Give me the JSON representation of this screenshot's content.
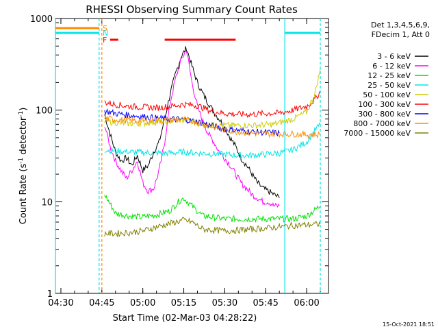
{
  "chart_data": {
    "type": "line",
    "title": "RHESSI Observing Summary Count Rates",
    "xlabel": "Start Time (02-Mar-03 04:28:22)",
    "ylabel": "Count Rate (s⁻¹ detector⁻¹)",
    "yscale": "log",
    "xlim": [
      "04:28",
      "06:08"
    ],
    "ylim": [
      1,
      1000
    ],
    "x_ticks": [
      "04:30",
      "04:45",
      "05:00",
      "05:15",
      "05:30",
      "05:45",
      "06:00"
    ],
    "y_ticks": [
      "1",
      "10",
      "100",
      "1000"
    ],
    "legend_placement": "right",
    "legend_header": [
      "Det 1,3,4,5,6,9,",
      "FDecim 1, Att 0"
    ],
    "footer_timestamp": "15-Oct-2021 18:51",
    "flags": [
      {
        "label": "S",
        "color": "#ff8c00",
        "segments": [
          [
            "04:28",
            "04:44"
          ]
        ]
      },
      {
        "label": "N",
        "color": "#00e5e5",
        "segments": [
          [
            "04:28",
            "04:44"
          ],
          [
            "05:52",
            "06:05"
          ]
        ]
      },
      {
        "label": "F",
        "color": "#ff0000",
        "segments": [
          [
            "04:48",
            "04:51"
          ],
          [
            "05:08",
            "05:34"
          ]
        ]
      }
    ],
    "night_boundaries": [
      {
        "time": "04:28",
        "color": "#00e5e5",
        "style": "solid"
      },
      {
        "time": "04:44",
        "color": "#00e5e5",
        "style": "dashed"
      },
      {
        "time": "04:45",
        "color": "#ff8c00",
        "style": "dashed"
      },
      {
        "time": "05:52",
        "color": "#00e5e5",
        "style": "solid"
      },
      {
        "time": "06:05",
        "color": "#00e5e5",
        "style": "dashed"
      }
    ],
    "series": [
      {
        "name": "3 - 6 keV",
        "color": "#000000",
        "points": [
          [
            "04:46",
            90
          ],
          [
            "04:48",
            55
          ],
          [
            "04:50",
            35
          ],
          [
            "04:52",
            28
          ],
          [
            "04:54",
            30
          ],
          [
            "04:56",
            25
          ],
          [
            "04:58",
            32
          ],
          [
            "05:00",
            22
          ],
          [
            "05:02",
            25
          ],
          [
            "05:04",
            35
          ],
          [
            "05:06",
            45
          ],
          [
            "05:08",
            80
          ],
          [
            "05:10",
            150
          ],
          [
            "05:12",
            250
          ],
          [
            "05:14",
            380
          ],
          [
            "05:16",
            480
          ],
          [
            "05:18",
            300
          ],
          [
            "05:20",
            200
          ],
          [
            "05:22",
            150
          ],
          [
            "05:24",
            120
          ],
          [
            "05:26",
            95
          ],
          [
            "05:28",
            80
          ],
          [
            "05:30",
            65
          ],
          [
            "05:32",
            50
          ],
          [
            "05:34",
            40
          ],
          [
            "05:36",
            30
          ],
          [
            "05:38",
            25
          ],
          [
            "05:40",
            20
          ],
          [
            "05:42",
            16
          ],
          [
            "05:44",
            14
          ],
          [
            "05:46",
            13
          ],
          [
            "05:48",
            12
          ],
          [
            "05:50",
            11
          ]
        ]
      },
      {
        "name": "6 - 12 keV",
        "color": "#ff00ff",
        "points": [
          [
            "04:46",
            70
          ],
          [
            "04:48",
            40
          ],
          [
            "04:50",
            28
          ],
          [
            "04:52",
            22
          ],
          [
            "04:54",
            18
          ],
          [
            "04:56",
            22
          ],
          [
            "04:58",
            28
          ],
          [
            "05:00",
            16
          ],
          [
            "05:02",
            13
          ],
          [
            "05:04",
            14
          ],
          [
            "05:06",
            22
          ],
          [
            "05:08",
            45
          ],
          [
            "05:10",
            120
          ],
          [
            "05:12",
            220
          ],
          [
            "05:14",
            350
          ],
          [
            "05:16",
            460
          ],
          [
            "05:18",
            200
          ],
          [
            "05:20",
            110
          ],
          [
            "05:22",
            75
          ],
          [
            "05:24",
            55
          ],
          [
            "05:26",
            45
          ],
          [
            "05:28",
            35
          ],
          [
            "05:30",
            30
          ],
          [
            "05:32",
            25
          ],
          [
            "05:34",
            20
          ],
          [
            "05:36",
            16
          ],
          [
            "05:38",
            14
          ],
          [
            "05:40",
            12
          ],
          [
            "05:42",
            11
          ],
          [
            "05:44",
            10
          ],
          [
            "05:46",
            10
          ],
          [
            "05:48",
            9
          ],
          [
            "05:50",
            9
          ]
        ]
      },
      {
        "name": "12 - 25 keV",
        "color": "#00e000",
        "points": [
          [
            "04:46",
            12
          ],
          [
            "04:50",
            7.5
          ],
          [
            "04:55",
            7
          ],
          [
            "05:00",
            6.8
          ],
          [
            "05:05",
            7.2
          ],
          [
            "05:10",
            8
          ],
          [
            "05:13",
            10
          ],
          [
            "05:15",
            11
          ],
          [
            "05:18",
            9
          ],
          [
            "05:22",
            7
          ],
          [
            "05:30",
            6.5
          ],
          [
            "05:40",
            6.5
          ],
          [
            "05:50",
            6.5
          ],
          [
            "05:55",
            6.5
          ],
          [
            "06:00",
            7
          ],
          [
            "06:05",
            9
          ]
        ]
      },
      {
        "name": "25 - 50 keV",
        "color": "#00e5e5",
        "points": [
          [
            "04:46",
            37
          ],
          [
            "04:50",
            36
          ],
          [
            "04:55",
            35
          ],
          [
            "05:00",
            34.5
          ],
          [
            "05:05",
            34
          ],
          [
            "05:10",
            34
          ],
          [
            "05:15",
            35
          ],
          [
            "05:20",
            34
          ],
          [
            "05:30",
            33
          ],
          [
            "05:35",
            32
          ],
          [
            "05:40",
            32
          ],
          [
            "05:45",
            33
          ],
          [
            "05:50",
            34
          ],
          [
            "05:55",
            37
          ],
          [
            "06:00",
            45
          ],
          [
            "06:03",
            60
          ],
          [
            "06:05",
            70
          ]
        ]
      },
      {
        "name": "50 - 100 keV",
        "color": "#cccc00",
        "points": [
          [
            "04:46",
            76
          ],
          [
            "04:50",
            73
          ],
          [
            "04:55",
            71
          ],
          [
            "05:00",
            72
          ],
          [
            "05:05",
            74
          ],
          [
            "05:10",
            76
          ],
          [
            "05:14",
            78
          ],
          [
            "05:18",
            75
          ],
          [
            "05:22",
            70
          ],
          [
            "05:26",
            68
          ],
          [
            "05:30",
            68
          ],
          [
            "05:40",
            68
          ],
          [
            "05:48",
            70
          ],
          [
            "05:55",
            80
          ],
          [
            "06:00",
            95
          ],
          [
            "06:03",
            150
          ],
          [
            "06:05",
            280
          ]
        ]
      },
      {
        "name": "100 - 300 keV",
        "color": "#ff0000",
        "points": [
          [
            "04:46",
            122
          ],
          [
            "04:50",
            115
          ],
          [
            "04:55",
            110
          ],
          [
            "05:00",
            108
          ],
          [
            "05:05",
            106
          ],
          [
            "05:10",
            110
          ],
          [
            "05:15",
            116
          ],
          [
            "05:20",
            112
          ],
          [
            "05:25",
            98
          ],
          [
            "05:30",
            92
          ],
          [
            "05:35",
            90
          ],
          [
            "05:40",
            90
          ],
          [
            "05:45",
            92
          ],
          [
            "05:50",
            93
          ],
          [
            "05:55",
            100
          ],
          [
            "06:00",
            110
          ],
          [
            "06:03",
            130
          ],
          [
            "06:05",
            160
          ]
        ]
      },
      {
        "name": "300 - 800 keV",
        "color": "#0000ff",
        "points": [
          [
            "04:46",
            98
          ],
          [
            "04:50",
            92
          ],
          [
            "04:55",
            88
          ],
          [
            "05:00",
            85
          ],
          [
            "05:05",
            82
          ],
          [
            "05:10",
            80
          ],
          [
            "05:15",
            79
          ],
          [
            "05:20",
            75
          ],
          [
            "05:25",
            68
          ],
          [
            "05:30",
            62
          ],
          [
            "05:35",
            60
          ],
          [
            "05:40",
            58
          ],
          [
            "05:45",
            57
          ],
          [
            "05:50",
            56
          ]
        ]
      },
      {
        "name": "800 - 7000 keV",
        "color": "#ff8c00",
        "points": [
          [
            "04:46",
            82
          ],
          [
            "04:50",
            79
          ],
          [
            "04:55",
            77
          ],
          [
            "05:00",
            76
          ],
          [
            "05:05",
            77
          ],
          [
            "05:10",
            78
          ],
          [
            "05:15",
            79
          ],
          [
            "05:20",
            74
          ],
          [
            "05:25",
            66
          ],
          [
            "05:30",
            61
          ],
          [
            "05:35",
            58
          ],
          [
            "05:40",
            56
          ],
          [
            "05:45",
            55
          ],
          [
            "05:50",
            55
          ],
          [
            "05:55",
            55
          ],
          [
            "06:00",
            54
          ],
          [
            "06:05",
            54
          ]
        ]
      },
      {
        "name": "7000 - 15000 keV",
        "color": "#808000",
        "points": [
          [
            "04:46",
            4.5
          ],
          [
            "04:50",
            4.5
          ],
          [
            "04:55",
            4.6
          ],
          [
            "05:00",
            4.8
          ],
          [
            "05:05",
            5.3
          ],
          [
            "05:10",
            5.8
          ],
          [
            "05:15",
            6.3
          ],
          [
            "05:18",
            6
          ],
          [
            "05:22",
            5
          ],
          [
            "05:30",
            4.8
          ],
          [
            "05:40",
            5
          ],
          [
            "05:50",
            5.3
          ],
          [
            "05:55",
            5.5
          ],
          [
            "06:00",
            5.6
          ],
          [
            "06:05",
            5.7
          ]
        ]
      }
    ]
  }
}
